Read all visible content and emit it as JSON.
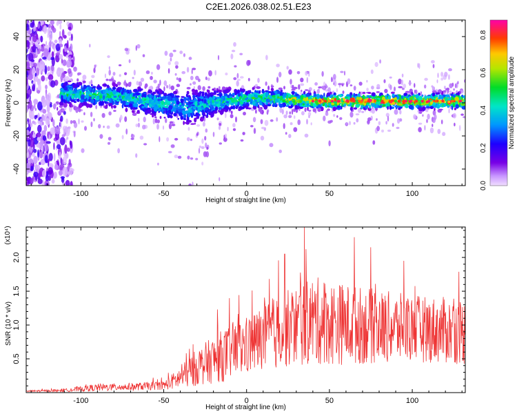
{
  "title": "C2E1.2026.038.02.51.E23",
  "chart_data": [
    {
      "type": "heatmap",
      "xlabel": "Height of straight line (km)",
      "ylabel": "Frequency (Hz)",
      "xlim": [
        -133,
        132
      ],
      "ylim": [
        -50,
        50
      ],
      "xticks": [
        -100,
        -50,
        0,
        50,
        100
      ],
      "yticks": [
        -40,
        -20,
        0,
        20,
        40
      ],
      "colorbar": {
        "label": "Normalized spectral amplitude",
        "range": [
          0.0,
          0.88
        ],
        "ticks": [
          0.0,
          0.2,
          0.4,
          0.6,
          0.8
        ],
        "tick_labels": [
          "0.0",
          "0.2",
          "0.4",
          "0.6",
          "0.8"
        ]
      },
      "band": {
        "description_points": [
          {
            "x": -110,
            "center": 6,
            "halfwidth": 6,
            "peak": 0.45
          },
          {
            "x": -80,
            "center": 4,
            "halfwidth": 6,
            "peak": 0.45
          },
          {
            "x": -55,
            "center": 0,
            "halfwidth": 7,
            "peak": 0.42
          },
          {
            "x": -35,
            "center": -3,
            "halfwidth": 9,
            "peak": 0.35
          },
          {
            "x": -15,
            "center": 1,
            "halfwidth": 6,
            "peak": 0.45
          },
          {
            "x": 10,
            "center": 3,
            "halfwidth": 5,
            "peak": 0.5
          },
          {
            "x": 40,
            "center": 1,
            "halfwidth": 4,
            "peak": 0.75
          },
          {
            "x": 70,
            "center": 1,
            "halfwidth": 4,
            "peak": 0.85
          },
          {
            "x": 100,
            "center": 1,
            "halfwidth": 4,
            "peak": 0.8
          },
          {
            "x": 130,
            "center": 1,
            "halfwidth": 4,
            "peak": 0.75
          }
        ]
      }
    },
    {
      "type": "line",
      "xlabel": "Height of straight line (km)",
      "ylabel": "SNR (10 * v/v)",
      "scale_label": "(x10⁴)",
      "xlim": [
        -133,
        132
      ],
      "ylim": [
        0,
        2.45
      ],
      "xticks": [
        -100,
        -50,
        0,
        50,
        100
      ],
      "yticks": [
        0.5,
        1.0,
        1.5,
        2.0
      ],
      "ytick_labels": [
        "0.5",
        "1.0",
        "1.5",
        "2.0"
      ],
      "color": "#ee3333",
      "envelope": [
        {
          "x": -133,
          "mean": 0.02,
          "spread": 0.01
        },
        {
          "x": -110,
          "mean": 0.03,
          "spread": 0.02
        },
        {
          "x": -90,
          "mean": 0.07,
          "spread": 0.05
        },
        {
          "x": -70,
          "mean": 0.08,
          "spread": 0.05
        },
        {
          "x": -50,
          "mean": 0.1,
          "spread": 0.06
        },
        {
          "x": -40,
          "mean": 0.2,
          "spread": 0.15
        },
        {
          "x": -30,
          "mean": 0.35,
          "spread": 0.25
        },
        {
          "x": -15,
          "mean": 0.5,
          "spread": 0.35
        },
        {
          "x": 0,
          "mean": 0.65,
          "spread": 0.4
        },
        {
          "x": 20,
          "mean": 0.85,
          "spread": 0.5
        },
        {
          "x": 40,
          "mean": 1.0,
          "spread": 0.6
        },
        {
          "x": 60,
          "mean": 0.95,
          "spread": 0.55
        },
        {
          "x": 80,
          "mean": 0.92,
          "spread": 0.5
        },
        {
          "x": 100,
          "mean": 0.9,
          "spread": 0.45
        },
        {
          "x": 132,
          "mean": 0.85,
          "spread": 0.45
        }
      ],
      "peaks": [
        {
          "x": 35,
          "y": 2.45
        },
        {
          "x": 23,
          "y": 2.05
        },
        {
          "x": 65,
          "y": 2.3
        },
        {
          "x": 75,
          "y": 2.15
        },
        {
          "x": 95,
          "y": 1.95
        }
      ]
    }
  ]
}
